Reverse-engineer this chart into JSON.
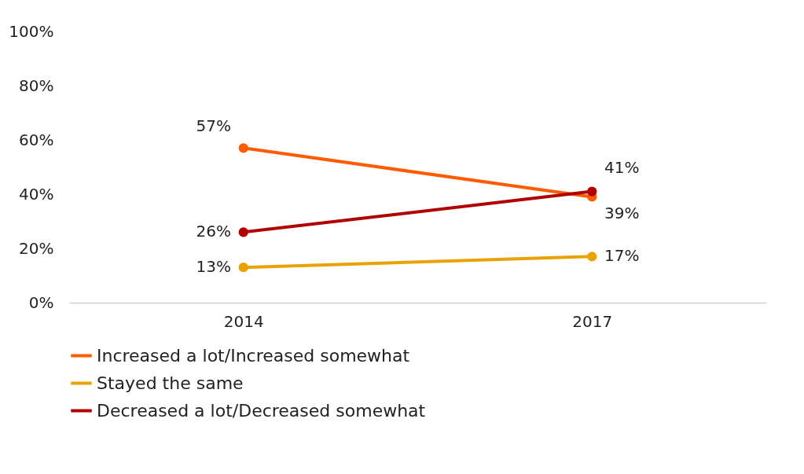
{
  "chart_data": {
    "type": "line",
    "categories": [
      "2014",
      "2017"
    ],
    "series": [
      {
        "name": "Increased a lot/Increased somewhat",
        "color": "#ff5b00",
        "values": [
          57,
          39
        ],
        "value_labels": [
          "57%",
          "39%"
        ]
      },
      {
        "name": "Stayed the same",
        "color": "#e8a202",
        "values": [
          13,
          17
        ],
        "value_labels": [
          "13%",
          "17%"
        ]
      },
      {
        "name": "Decreased a lot/Decreased somewhat",
        "color": "#b00000",
        "values": [
          26,
          41
        ],
        "value_labels": [
          "26%",
          "41%"
        ]
      }
    ],
    "ylim": [
      0,
      100
    ],
    "yticks": [
      {
        "value": 0,
        "label": "0%"
      },
      {
        "value": 20,
        "label": "20%"
      },
      {
        "value": 40,
        "label": "40%"
      },
      {
        "value": 60,
        "label": "60%"
      },
      {
        "value": 80,
        "label": "80%"
      },
      {
        "value": 100,
        "label": "100%"
      }
    ],
    "grid": false,
    "legend": "bottom",
    "marker": "circle",
    "line_style": "solid"
  }
}
